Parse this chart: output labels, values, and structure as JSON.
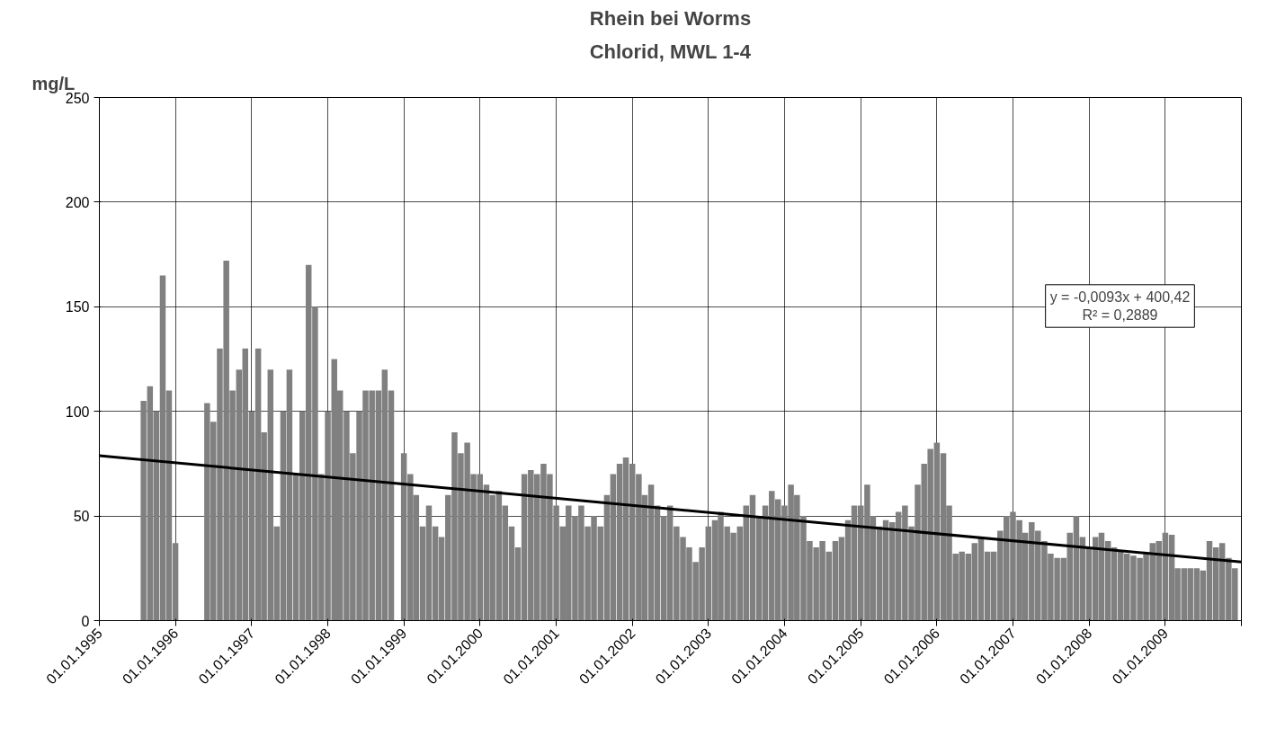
{
  "chart_data": {
    "type": "bar",
    "title": "Rhein bei Worms",
    "subtitle": "Chlorid, MWL 1-4",
    "ylabel": "mg/L",
    "x": [
      "1995-08",
      "1995-09",
      "1995-10",
      "1995-11",
      "1995-12",
      "1996-01",
      "1996-02",
      "1996-03",
      "1996-04",
      "1996-05",
      "1996-06",
      "1996-07",
      "1996-08",
      "1996-09",
      "1996-10",
      "1996-11",
      "1996-12",
      "1997-01",
      "1997-02",
      "1997-03",
      "1997-04",
      "1997-05",
      "1997-06",
      "1997-07",
      "1997-08",
      "1997-09",
      "1997-10",
      "1997-11",
      "1997-12",
      "1998-01",
      "1998-02",
      "1998-03",
      "1998-04",
      "1998-05",
      "1998-06",
      "1998-07",
      "1998-08",
      "1998-09",
      "1998-10",
      "1998-11",
      "1998-12",
      "1999-01",
      "1999-02",
      "1999-03",
      "1999-04",
      "1999-05",
      "1999-06",
      "1999-07",
      "1999-08",
      "1999-09",
      "1999-10",
      "1999-11",
      "1999-12",
      "2000-01",
      "2000-02",
      "2000-03",
      "2000-04",
      "2000-05",
      "2000-06",
      "2000-07",
      "2000-08",
      "2000-09",
      "2000-10",
      "2000-11",
      "2000-12",
      "2001-01",
      "2001-02",
      "2001-03",
      "2001-04",
      "2001-05",
      "2001-06",
      "2001-07",
      "2001-08",
      "2001-09",
      "2001-10",
      "2001-11",
      "2001-12",
      "2002-01",
      "2002-02",
      "2002-03",
      "2002-04",
      "2002-05",
      "2002-06",
      "2002-07",
      "2002-08",
      "2002-09",
      "2002-10",
      "2002-11",
      "2002-12",
      "2003-01",
      "2003-02",
      "2003-03",
      "2003-04",
      "2003-05",
      "2003-06",
      "2003-07",
      "2003-08",
      "2003-09",
      "2003-10",
      "2003-11",
      "2003-12",
      "2004-01",
      "2004-02",
      "2004-03",
      "2004-04",
      "2004-05",
      "2004-06",
      "2004-07",
      "2004-08",
      "2004-09",
      "2004-10",
      "2004-11",
      "2004-12",
      "2005-01",
      "2005-02",
      "2005-03",
      "2005-04",
      "2005-05",
      "2005-06",
      "2005-07",
      "2005-08",
      "2005-09",
      "2005-10",
      "2005-11",
      "2005-12",
      "2006-01",
      "2006-02",
      "2006-03",
      "2006-04",
      "2006-05",
      "2006-06",
      "2006-07",
      "2006-08",
      "2006-09",
      "2006-10",
      "2006-11",
      "2006-12",
      "2007-01",
      "2007-02",
      "2007-03",
      "2007-04",
      "2007-05",
      "2007-06",
      "2007-07",
      "2007-08",
      "2007-09",
      "2007-10",
      "2007-11",
      "2007-12",
      "2008-01",
      "2008-02",
      "2008-03",
      "2008-04",
      "2008-05",
      "2008-06",
      "2008-07",
      "2008-08",
      "2008-09",
      "2008-10",
      "2008-11",
      "2008-12",
      "2009-01",
      "2009-02",
      "2009-03",
      "2009-04",
      "2009-05",
      "2009-06",
      "2009-07",
      "2009-08",
      "2009-09",
      "2009-10",
      "2009-11",
      "2009-12"
    ],
    "series": [
      {
        "color": "#808080",
        "values": [
          105,
          112,
          100,
          165,
          110,
          37,
          null,
          null,
          null,
          null,
          104,
          95,
          130,
          172,
          110,
          120,
          130,
          100,
          130,
          90,
          120,
          45,
          100,
          120,
          70,
          100,
          170,
          150,
          70,
          100,
          125,
          110,
          100,
          80,
          100,
          110,
          110,
          110,
          120,
          110,
          null,
          80,
          70,
          60,
          45,
          55,
          45,
          40,
          60,
          90,
          80,
          85,
          70,
          70,
          65,
          60,
          62,
          55,
          45,
          35,
          70,
          72,
          70,
          75,
          70,
          55,
          45,
          55,
          50,
          55,
          45,
          50,
          45,
          60,
          70,
          75,
          78,
          75,
          70,
          60,
          65,
          55,
          50,
          55,
          45,
          40,
          35,
          28,
          35,
          45,
          48,
          52,
          45,
          42,
          45,
          55,
          60,
          50,
          55,
          62,
          58,
          55,
          65,
          60,
          50,
          38,
          35,
          38,
          33,
          38,
          40,
          48,
          55,
          55,
          65,
          50,
          45,
          48,
          47,
          52,
          55,
          45,
          65,
          75,
          82,
          85,
          80,
          55,
          32,
          33,
          32,
          37,
          40,
          33,
          33,
          43,
          50,
          52,
          48,
          42,
          47,
          43,
          38,
          32,
          30,
          30,
          42,
          50,
          40,
          35,
          40,
          42,
          38,
          35,
          33,
          32,
          31,
          30,
          32,
          37,
          38,
          42,
          41,
          25,
          25,
          25,
          25,
          24,
          38,
          35,
          37,
          30,
          25
        ]
      },
      {
        "type": "line",
        "color": "#000000",
        "x": [
          "1995-01-01",
          "2010-01-01"
        ],
        "values": [
          78.8,
          28
        ]
      }
    ],
    "annotations": [
      "y = -0,0093x + 400,42\nR² = 0,2889"
    ],
    "xlim": [
      "1995-01-01",
      "2010-01-01"
    ],
    "xticks": [
      {
        "value": "1995-01-01",
        "label": "01.01.1995"
      },
      {
        "value": "1996-01-01",
        "label": "01.01.1996"
      },
      {
        "value": "1997-01-01",
        "label": "01.01.1997"
      },
      {
        "value": "1998-01-01",
        "label": "01.01.1998"
      },
      {
        "value": "1999-01-01",
        "label": "01.01.1999"
      },
      {
        "value": "2000-01-01",
        "label": "01.01.2000"
      },
      {
        "value": "2001-01-01",
        "label": "01.01.2001"
      },
      {
        "value": "2002-01-01",
        "label": "01.01.2002"
      },
      {
        "value": "2003-01-01",
        "label": "01.01.2003"
      },
      {
        "value": "2004-01-01",
        "label": "01.01.2004"
      },
      {
        "value": "2005-01-01",
        "label": "01.01.2005"
      },
      {
        "value": "2006-01-01",
        "label": "01.01.2006"
      },
      {
        "value": "2007-01-01",
        "label": "01.01.2007"
      },
      {
        "value": "2008-01-01",
        "label": "01.01.2008"
      },
      {
        "value": "2009-01-01",
        "label": "01.01.2009"
      },
      {
        "value": "2010-01-01",
        "label": null
      }
    ],
    "ylim": [
      0,
      250
    ],
    "yticks": [
      0,
      50,
      100,
      150,
      200,
      250
    ],
    "grid": true
  }
}
